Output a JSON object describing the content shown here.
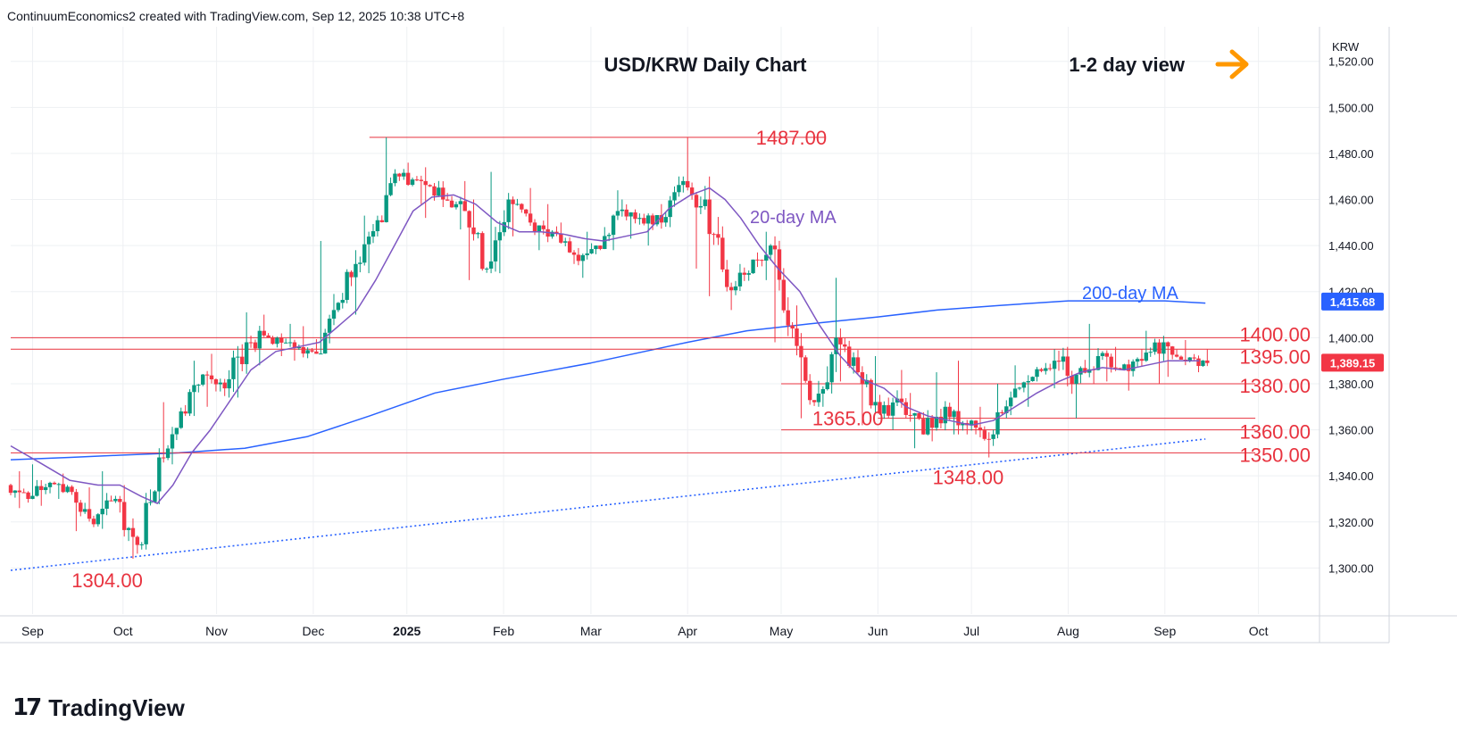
{
  "header": {
    "text": "ContinuumEconomics2 created with TradingView.com, Sep 12, 2025 10:38 UTC+8"
  },
  "footer": {
    "brand": "TradingView"
  },
  "colors": {
    "up": "#089981",
    "down": "#f23645",
    "ma20": "#7e57c2",
    "ma200": "#2962ff",
    "level": "#e8333f",
    "arrow": "#ff9800",
    "grid": "#eef0f3",
    "text": "#131722"
  },
  "chart_data": {
    "type": "candlestick",
    "title": "USD/KRW Daily Chart",
    "subtitle": "1-2 day view",
    "symbol": "KRW",
    "y_range": [
      1280,
      1535
    ],
    "y_ticks": [
      1300,
      1320,
      1340,
      1360,
      1380,
      1400,
      1420,
      1440,
      1460,
      1480,
      1500,
      1520
    ],
    "y_tick_labels": [
      "1,300.00",
      "1,320.00",
      "1,340.00",
      "1,360.00",
      "1,380.00",
      "1,400.00",
      "1,420.00",
      "1,440.00",
      "1,460.00",
      "1,480.00",
      "1,500.00",
      "1,520.00"
    ],
    "x_range": [
      "2024-08-27",
      "2025-10-20"
    ],
    "x_ticks": [
      {
        "date": "2024-09-03",
        "label": "Sep"
      },
      {
        "date": "2024-10-02",
        "label": "Oct"
      },
      {
        "date": "2024-11-01",
        "label": "Nov"
      },
      {
        "date": "2024-12-02",
        "label": "Dec"
      },
      {
        "date": "2025-01-01",
        "label": "2025"
      },
      {
        "date": "2025-02-01",
        "label": "Feb"
      },
      {
        "date": "2025-03-01",
        "label": "Mar"
      },
      {
        "date": "2025-04-01",
        "label": "Apr"
      },
      {
        "date": "2025-05-01",
        "label": "May"
      },
      {
        "date": "2025-06-01",
        "label": "Jun"
      },
      {
        "date": "2025-07-01",
        "label": "Jul"
      },
      {
        "date": "2025-08-01",
        "label": "Aug"
      },
      {
        "date": "2025-09-01",
        "label": "Sep"
      },
      {
        "date": "2025-10-01",
        "label": "Oct"
      }
    ],
    "last_price": {
      "value": 1389.15,
      "label": "1,389.15"
    },
    "ma200_price": {
      "value": 1415.68,
      "label": "1,415.68"
    },
    "levels": [
      {
        "value": 1487,
        "label": "1487.00",
        "from": "2024-12-20",
        "to": "2025-05-15"
      },
      {
        "value": 1400,
        "label": "1400.00",
        "from": "2024-08-27",
        "to": "2025-09-30"
      },
      {
        "value": 1395,
        "label": "1395.00",
        "from": "2024-08-27",
        "to": "2025-09-30"
      },
      {
        "value": 1380,
        "label": "1380.00",
        "from": "2025-05-01",
        "to": "2025-09-30"
      },
      {
        "value": 1365,
        "label": "1365.00",
        "from": "2025-06-01",
        "to": "2025-09-30"
      },
      {
        "value": 1360,
        "label": "1360.00",
        "from": "2025-05-01",
        "to": "2025-09-30"
      },
      {
        "value": 1350,
        "label": "1350.00",
        "from": "2024-08-27",
        "to": "2025-09-30"
      }
    ],
    "annotations": [
      {
        "text": "1348.00",
        "date": "2025-06-30",
        "value": 1348
      },
      {
        "text": "1304.00",
        "date": "2024-10-01",
        "value": 1304
      }
    ],
    "trendline": {
      "from": {
        "date": "2024-08-27",
        "value": 1299
      },
      "to": {
        "date": "2025-09-14",
        "value": 1356
      }
    },
    "ma20": {
      "label": "20-day MA",
      "points": [
        [
          "2024-08-27",
          1353
        ],
        [
          "2024-09-05",
          1346
        ],
        [
          "2024-09-15",
          1338
        ],
        [
          "2024-09-24",
          1336
        ],
        [
          "2024-10-01",
          1336
        ],
        [
          "2024-10-08",
          1331
        ],
        [
          "2024-10-13",
          1328
        ],
        [
          "2024-10-18",
          1336
        ],
        [
          "2024-10-24",
          1350
        ],
        [
          "2024-10-30",
          1360
        ],
        [
          "2024-11-05",
          1372
        ],
        [
          "2024-11-12",
          1386
        ],
        [
          "2024-11-20",
          1394
        ],
        [
          "2024-11-27",
          1396
        ],
        [
          "2024-12-04",
          1398
        ],
        [
          "2024-12-10",
          1405
        ],
        [
          "2024-12-16",
          1412
        ],
        [
          "2024-12-22",
          1425
        ],
        [
          "2024-12-28",
          1440
        ],
        [
          "2025-01-03",
          1455
        ],
        [
          "2025-01-09",
          1461
        ],
        [
          "2025-01-16",
          1462
        ],
        [
          "2025-01-23",
          1458
        ],
        [
          "2025-01-30",
          1450
        ],
        [
          "2025-02-06",
          1446
        ],
        [
          "2025-02-13",
          1446
        ],
        [
          "2025-02-20",
          1445
        ],
        [
          "2025-02-27",
          1443
        ],
        [
          "2025-03-05",
          1442
        ],
        [
          "2025-03-12",
          1444
        ],
        [
          "2025-03-19",
          1446
        ],
        [
          "2025-03-26",
          1456
        ],
        [
          "2025-04-02",
          1462
        ],
        [
          "2025-04-08",
          1465
        ],
        [
          "2025-04-13",
          1460
        ],
        [
          "2025-04-18",
          1452
        ],
        [
          "2025-04-24",
          1440
        ],
        [
          "2025-04-30",
          1430
        ],
        [
          "2025-05-07",
          1420
        ],
        [
          "2025-05-13",
          1406
        ],
        [
          "2025-05-20",
          1392
        ],
        [
          "2025-05-27",
          1382
        ],
        [
          "2025-06-03",
          1378
        ],
        [
          "2025-06-10",
          1370
        ],
        [
          "2025-06-17",
          1366
        ],
        [
          "2025-06-24",
          1364
        ],
        [
          "2025-07-01",
          1362
        ],
        [
          "2025-07-08",
          1364
        ],
        [
          "2025-07-15",
          1370
        ],
        [
          "2025-07-22",
          1376
        ],
        [
          "2025-07-29",
          1381
        ],
        [
          "2025-08-05",
          1385
        ],
        [
          "2025-08-12",
          1387
        ],
        [
          "2025-08-19",
          1386
        ],
        [
          "2025-08-26",
          1388
        ],
        [
          "2025-09-02",
          1390
        ],
        [
          "2025-09-09",
          1390
        ],
        [
          "2025-09-12",
          1390
        ]
      ]
    },
    "ma200": {
      "label": "200-day MA",
      "points": [
        [
          "2024-08-27",
          1347
        ],
        [
          "2024-09-15",
          1348
        ],
        [
          "2024-10-01",
          1349
        ],
        [
          "2024-10-20",
          1350
        ],
        [
          "2024-11-10",
          1352
        ],
        [
          "2024-11-30",
          1357
        ],
        [
          "2024-12-20",
          1366
        ],
        [
          "2025-01-10",
          1376
        ],
        [
          "2025-02-01",
          1382
        ],
        [
          "2025-03-01",
          1389
        ],
        [
          "2025-04-01",
          1398
        ],
        [
          "2025-04-20",
          1403
        ],
        [
          "2025-05-10",
          1406
        ],
        [
          "2025-06-01",
          1409
        ],
        [
          "2025-06-20",
          1412
        ],
        [
          "2025-07-10",
          1414
        ],
        [
          "2025-08-01",
          1416
        ],
        [
          "2025-08-15",
          1416
        ],
        [
          "2025-09-01",
          1416
        ],
        [
          "2025-09-14",
          1415
        ]
      ]
    },
    "ohlc_weekly": [
      [
        "2024-08-27",
        1336,
        1342,
        1326,
        1330
      ],
      [
        "2024-09-03",
        1330,
        1345,
        1327,
        1337
      ],
      [
        "2024-09-10",
        1337,
        1341,
        1330,
        1333
      ],
      [
        "2024-09-17",
        1333,
        1335,
        1316,
        1319
      ],
      [
        "2024-09-24",
        1319,
        1342,
        1317,
        1330
      ],
      [
        "2024-10-01",
        1330,
        1336,
        1304,
        1310
      ],
      [
        "2024-10-08",
        1310,
        1352,
        1308,
        1348
      ],
      [
        "2024-10-15",
        1348,
        1372,
        1345,
        1368
      ],
      [
        "2024-10-22",
        1368,
        1390,
        1366,
        1384
      ],
      [
        "2024-10-29",
        1384,
        1393,
        1370,
        1378
      ],
      [
        "2024-11-05",
        1378,
        1411,
        1374,
        1398
      ],
      [
        "2024-11-12",
        1398,
        1410,
        1388,
        1400
      ],
      [
        "2024-11-19",
        1400,
        1406,
        1392,
        1398
      ],
      [
        "2024-11-26",
        1398,
        1405,
        1390,
        1394
      ],
      [
        "2024-12-03",
        1394,
        1442,
        1393,
        1412
      ],
      [
        "2024-12-10",
        1412,
        1438,
        1410,
        1432
      ],
      [
        "2024-12-17",
        1432,
        1453,
        1428,
        1451
      ],
      [
        "2024-12-24",
        1451,
        1487,
        1450,
        1470
      ],
      [
        "2024-12-31",
        1470,
        1476,
        1458,
        1468
      ],
      [
        "2025-01-07",
        1468,
        1474,
        1452,
        1460
      ],
      [
        "2025-01-14",
        1460,
        1468,
        1447,
        1455
      ],
      [
        "2025-01-21",
        1455,
        1460,
        1425,
        1430
      ],
      [
        "2025-01-28",
        1430,
        1472,
        1428,
        1460
      ],
      [
        "2025-02-04",
        1460,
        1465,
        1444,
        1450
      ],
      [
        "2025-02-11",
        1450,
        1458,
        1438,
        1446
      ],
      [
        "2025-02-18",
        1446,
        1450,
        1432,
        1436
      ],
      [
        "2025-02-25",
        1436,
        1446,
        1426,
        1440
      ],
      [
        "2025-03-04",
        1440,
        1464,
        1438,
        1455
      ],
      [
        "2025-03-11",
        1455,
        1460,
        1443,
        1452
      ],
      [
        "2025-03-18",
        1452,
        1458,
        1440,
        1450
      ],
      [
        "2025-03-25",
        1450,
        1470,
        1448,
        1468
      ],
      [
        "2025-04-01",
        1468,
        1487,
        1430,
        1460
      ],
      [
        "2025-04-08",
        1460,
        1470,
        1418,
        1422
      ],
      [
        "2025-04-15",
        1422,
        1432,
        1412,
        1428
      ],
      [
        "2025-04-22",
        1428,
        1446,
        1425,
        1440
      ],
      [
        "2025-04-29",
        1440,
        1444,
        1398,
        1404
      ],
      [
        "2025-05-06",
        1404,
        1414,
        1365,
        1372
      ],
      [
        "2025-05-13",
        1372,
        1426,
        1370,
        1400
      ],
      [
        "2025-05-20",
        1400,
        1404,
        1381,
        1385
      ],
      [
        "2025-05-27",
        1385,
        1392,
        1362,
        1367
      ],
      [
        "2025-06-03",
        1367,
        1386,
        1360,
        1372
      ],
      [
        "2025-06-10",
        1372,
        1376,
        1352,
        1358
      ],
      [
        "2025-06-17",
        1358,
        1385,
        1355,
        1370
      ],
      [
        "2025-06-24",
        1370,
        1390,
        1358,
        1362
      ],
      [
        "2025-07-01",
        1362,
        1370,
        1348,
        1356
      ],
      [
        "2025-07-08",
        1356,
        1380,
        1353,
        1374
      ],
      [
        "2025-07-15",
        1374,
        1388,
        1370,
        1383
      ],
      [
        "2025-07-22",
        1383,
        1395,
        1378,
        1390
      ],
      [
        "2025-07-29",
        1390,
        1396,
        1365,
        1384
      ],
      [
        "2025-08-05",
        1384,
        1406,
        1380,
        1392
      ],
      [
        "2025-08-12",
        1392,
        1396,
        1381,
        1386
      ],
      [
        "2025-08-19",
        1386,
        1395,
        1377,
        1390
      ],
      [
        "2025-08-26",
        1390,
        1403,
        1380,
        1398
      ],
      [
        "2025-09-02",
        1398,
        1399,
        1383,
        1390
      ],
      [
        "2025-09-09",
        1390,
        1395,
        1385,
        1389
      ]
    ]
  }
}
